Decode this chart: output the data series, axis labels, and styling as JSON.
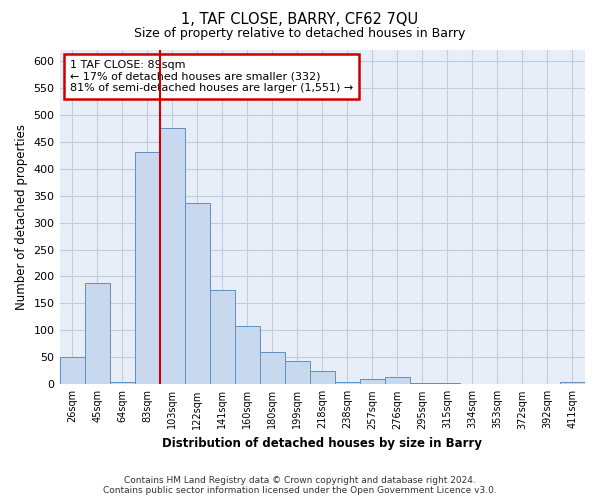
{
  "title": "1, TAF CLOSE, BARRY, CF62 7QU",
  "subtitle": "Size of property relative to detached houses in Barry",
  "xlabel": "Distribution of detached houses by size in Barry",
  "ylabel": "Number of detached properties",
  "bar_color": "#c8d8ee",
  "bar_edge_color": "#6090c0",
  "categories": [
    "26sqm",
    "45sqm",
    "64sqm",
    "83sqm",
    "103sqm",
    "122sqm",
    "141sqm",
    "160sqm",
    "180sqm",
    "199sqm",
    "218sqm",
    "238sqm",
    "257sqm",
    "276sqm",
    "295sqm",
    "315sqm",
    "334sqm",
    "353sqm",
    "372sqm",
    "392sqm",
    "411sqm"
  ],
  "values": [
    50,
    187,
    5,
    430,
    475,
    337,
    175,
    108,
    60,
    44,
    25,
    5,
    10,
    13,
    3,
    2,
    1,
    1,
    1,
    1,
    5
  ],
  "vline_x_index": 4,
  "vline_color": "#cc0000",
  "ylim": [
    0,
    620
  ],
  "yticks": [
    0,
    50,
    100,
    150,
    200,
    250,
    300,
    350,
    400,
    450,
    500,
    550,
    600
  ],
  "annotation_line1": "1 TAF CLOSE: 89sqm",
  "annotation_line2": "← 17% of detached houses are smaller (332)",
  "annotation_line3": "81% of semi-detached houses are larger (1,551) →",
  "annotation_box_color": "white",
  "annotation_box_edge": "#cc0000",
  "footer_line1": "Contains HM Land Registry data © Crown copyright and database right 2024.",
  "footer_line2": "Contains public sector information licensed under the Open Government Licence v3.0.",
  "bg_color": "white",
  "plot_bg_color": "#e8eef8",
  "grid_color": "#c0cce0"
}
